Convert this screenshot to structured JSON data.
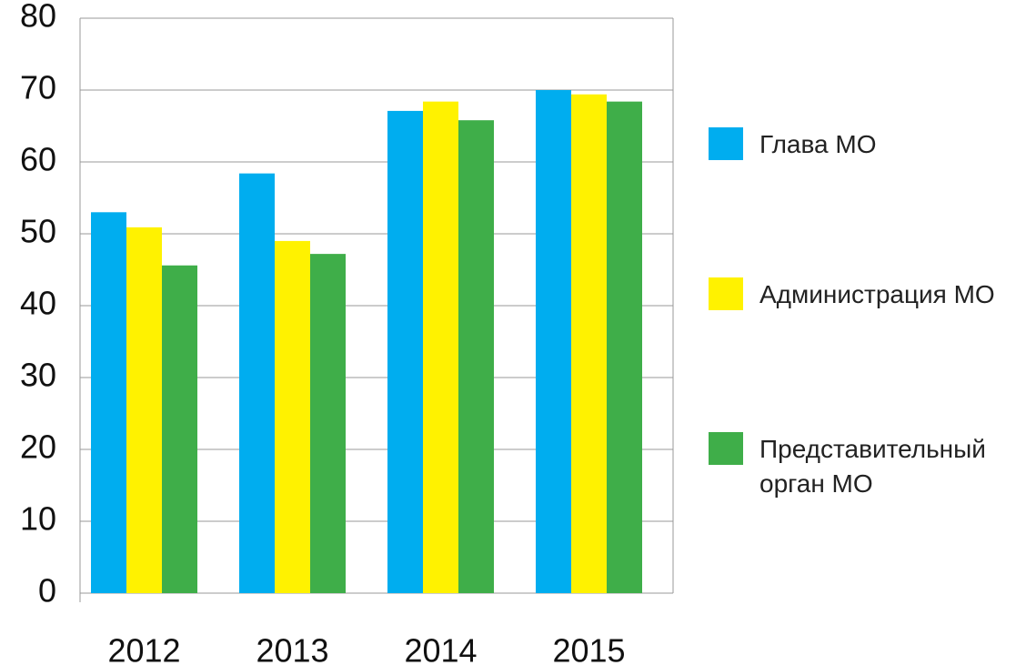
{
  "chart_data": {
    "type": "bar",
    "categories": [
      "2012",
      "2013",
      "2014",
      "2015"
    ],
    "series": [
      {
        "name": "Глава МО",
        "color": "#00adef",
        "values": [
          53,
          58.4,
          67.1,
          70
        ]
      },
      {
        "name": "Администрация МО",
        "color": "#fff200",
        "values": [
          50.9,
          49,
          68.4,
          69.4
        ]
      },
      {
        "name": "Представительный орган МО",
        "color": "#3fae49",
        "values": [
          45.6,
          47.2,
          65.8,
          68.4
        ]
      }
    ],
    "ylim": [
      0,
      80
    ],
    "yticks": [
      0,
      10,
      20,
      30,
      40,
      50,
      60,
      70,
      80
    ],
    "grid": true,
    "legend": "right"
  }
}
